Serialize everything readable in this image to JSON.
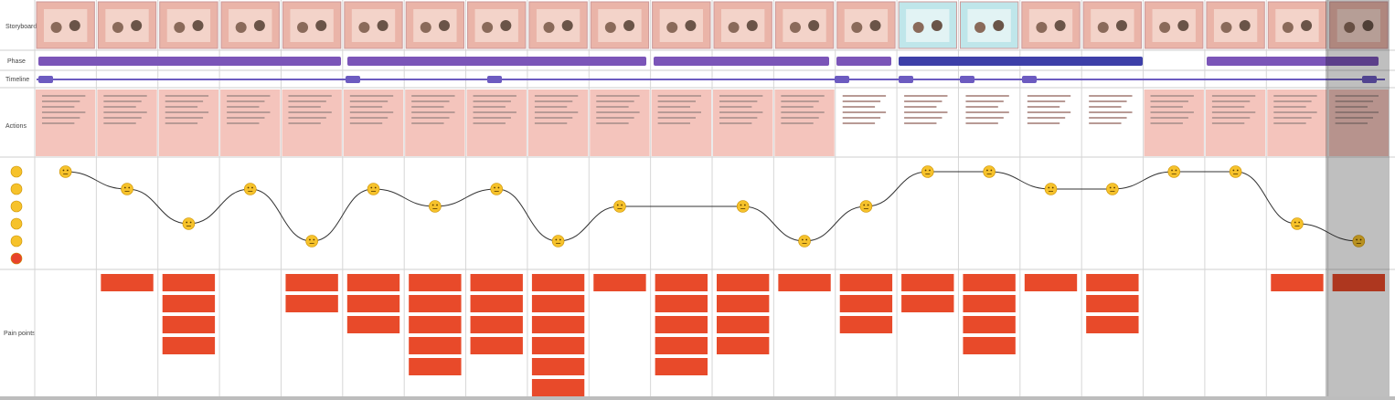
{
  "rows": {
    "storyboard": "Storyboard",
    "phase": "Phase",
    "timeline": "Timeline",
    "actions": "Actions",
    "pain_points": "Pain points"
  },
  "emotion": {
    "levels": [
      1,
      2,
      4,
      2,
      5,
      2,
      3,
      2,
      5,
      3,
      null,
      3,
      5,
      3,
      1,
      1,
      2,
      2,
      1,
      1,
      4,
      5
    ]
  }
}
